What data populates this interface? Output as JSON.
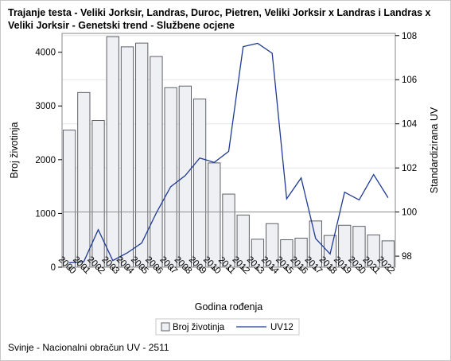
{
  "title": "Trajanje testa - Veliki Jorksir, Landras, Duroc, Pietren, Veliki Jorksir x Landras i Landras x Veliki Jorksir - Genetski trend - Službene ocjene",
  "footnote": "Svinje - Nacionalni obračun UV - 2511",
  "chart_data": {
    "type": "bar+line",
    "xlabel": "Godina rođenja",
    "ylabel_left": "Broj životinja",
    "ylabel_right": "Standardizirana UV",
    "categories": [
      "2000",
      "2001",
      "2002",
      "2003",
      "2004",
      "2005",
      "2006",
      "2007",
      "2008",
      "2009",
      "2010",
      "2011",
      "2012",
      "2013",
      "2014",
      "2015",
      "2016",
      "2017",
      "2018",
      "2019",
      "2020",
      "2021",
      "2022"
    ],
    "series": [
      {
        "name": "Broj životinja",
        "type": "bar",
        "axis": "left",
        "values": [
          2550,
          3250,
          2730,
          4290,
          4100,
          4170,
          3920,
          3340,
          3370,
          3130,
          1940,
          1360,
          970,
          520,
          810,
          510,
          540,
          860,
          590,
          780,
          760,
          600,
          490
        ]
      },
      {
        "name": "UV12",
        "type": "line",
        "axis": "right",
        "values": [
          97.7,
          97.75,
          99.2,
          97.8,
          98.15,
          98.6,
          99.95,
          101.15,
          101.65,
          102.45,
          102.25,
          102.75,
          107.5,
          107.65,
          107.2,
          100.6,
          101.55,
          98.8,
          98.1,
          100.9,
          100.55,
          101.7,
          100.65
        ]
      }
    ],
    "ylim_left": [
      0,
      4350
    ],
    "yticks_left": [
      0,
      1000,
      2000,
      3000,
      4000
    ],
    "ylim_right": [
      97.5,
      108.1
    ],
    "yticks_right": [
      98,
      100,
      102,
      104,
      106,
      108
    ],
    "reference_line_right": 100,
    "legend": {
      "position": "bottom",
      "items": [
        "Broj životinja",
        "UV12"
      ]
    },
    "colors": {
      "bar_fill": "#eef0f4",
      "bar_stroke": "#5e6068",
      "line": "#1f3a93",
      "grid": "#e6e6e6",
      "refline": "#909090"
    }
  }
}
